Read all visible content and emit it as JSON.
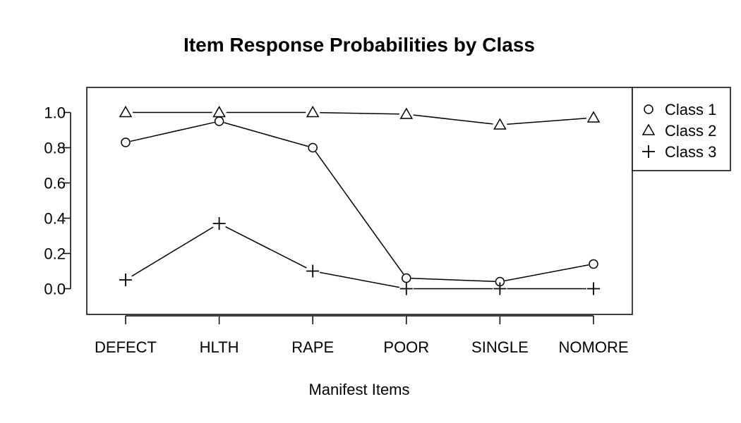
{
  "chart_data": {
    "type": "line",
    "title": "Item Response Probabilities by Class",
    "xlabel": "Manifest Items",
    "ylabel": "",
    "categories": [
      "DEFECT",
      "HLTH",
      "RAPE",
      "POOR",
      "SINGLE",
      "NOMORE"
    ],
    "yticks": [
      "0.0",
      "0.2",
      "0.4",
      "0.6",
      "0.8",
      "1.0"
    ],
    "ylim": [
      -0.15,
      1.15
    ],
    "grid": false,
    "legend_position": "right",
    "series": [
      {
        "name": "Class 1",
        "marker": "circle",
        "values": [
          0.83,
          0.95,
          0.8,
          0.06,
          0.04,
          0.14
        ]
      },
      {
        "name": "Class 2",
        "marker": "triangle",
        "values": [
          1.0,
          1.0,
          1.0,
          0.99,
          0.93,
          0.97
        ]
      },
      {
        "name": "Class 3",
        "marker": "plus",
        "values": [
          0.05,
          0.37,
          0.1,
          0.0,
          0.0,
          0.0
        ]
      }
    ]
  }
}
